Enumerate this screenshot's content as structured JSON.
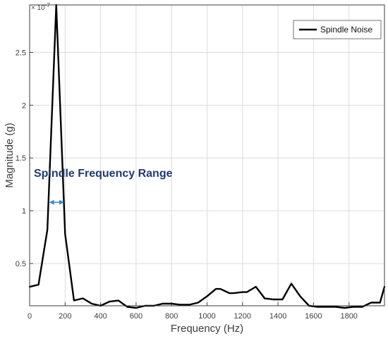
{
  "chart_data": {
    "type": "line",
    "title": "",
    "xlabel": "Frequency (Hz)",
    "ylabel": "Magnitude (g)",
    "xlim": [
      0,
      2000
    ],
    "ylim": [
      0.1,
      2.95
    ],
    "y_multiplier_label": "× 10",
    "y_multiplier_exponent": "-7",
    "x_ticks": [
      0,
      200,
      400,
      600,
      800,
      1000,
      1200,
      1400,
      1600,
      1800
    ],
    "x_tick_labels": [
      "0",
      "200",
      "400",
      "600",
      "800",
      "1000",
      "1200",
      "1400",
      "1600",
      "1800"
    ],
    "y_ticks": [
      0.5,
      1,
      1.5,
      2,
      2.5
    ],
    "y_tick_labels": [
      "0.5",
      "1",
      "1.5",
      "2",
      "2.5"
    ],
    "grid": true,
    "legend_position": "top-right",
    "series": [
      {
        "name": "Spindle Noise",
        "color": "#000000",
        "x": [
          0,
          50,
          100,
          150,
          200,
          250,
          300,
          350,
          400,
          450,
          500,
          550,
          600,
          650,
          700,
          750,
          800,
          850,
          900,
          950,
          1000,
          1050,
          1075,
          1125,
          1150,
          1200,
          1225,
          1275,
          1325,
          1375,
          1425,
          1475,
          1525,
          1575,
          1625,
          1675,
          1725,
          1775,
          1825,
          1875,
          1925,
          1975,
          2000
        ],
        "y": [
          0.28,
          0.3,
          0.82,
          2.95,
          0.78,
          0.15,
          0.17,
          0.12,
          0.1,
          0.14,
          0.15,
          0.09,
          0.08,
          0.1,
          0.1,
          0.12,
          0.12,
          0.11,
          0.11,
          0.13,
          0.19,
          0.26,
          0.26,
          0.22,
          0.22,
          0.23,
          0.23,
          0.28,
          0.17,
          0.16,
          0.16,
          0.31,
          0.19,
          0.1,
          0.09,
          0.09,
          0.09,
          0.08,
          0.09,
          0.09,
          0.13,
          0.13,
          0.28
        ]
      }
    ],
    "annotation": {
      "text": "Spindle Frequency Range",
      "arrow_from_x": 110,
      "arrow_to_x": 195,
      "arrow_y": 1.08,
      "color": "#2e8fd0"
    }
  }
}
